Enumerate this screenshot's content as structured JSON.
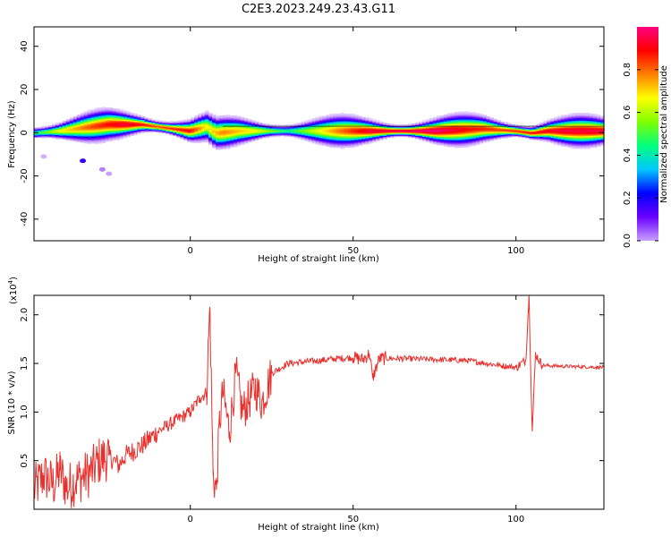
{
  "title": "C2E3.2023.249.23.43.G11",
  "chart_data": [
    {
      "type": "heatmap",
      "xlabel": "Height of straight line (km)",
      "ylabel": "Frequency (Hz)",
      "xlim": [
        -48,
        127
      ],
      "ylim": [
        -50,
        49
      ],
      "xticks": [
        0,
        50,
        100
      ],
      "yticks": [
        -40,
        -20,
        0,
        20,
        40
      ],
      "ytick_labels": [
        "-40",
        "-20",
        "0",
        "20",
        "40"
      ],
      "colorbar": {
        "label": "Normalized spectral amplitude",
        "range": [
          0.0,
          1.0
        ],
        "ticks": [
          0.0,
          0.2,
          0.4,
          0.6,
          0.8
        ],
        "tick_labels": [
          "0.0",
          "0.2",
          "0.4",
          "0.6",
          "0.8"
        ],
        "colormap": [
          "#ffffff",
          "#c8a0ff",
          "#6a00ff",
          "#0000ff",
          "#00c8ff",
          "#00ff80",
          "#80ff00",
          "#ffff00",
          "#ff8000",
          "#ff0000",
          "#ff0080"
        ]
      },
      "band_center_hz": [
        [
          -48,
          0
        ],
        [
          -40,
          1
        ],
        [
          -30,
          3
        ],
        [
          -25,
          4
        ],
        [
          -15,
          4
        ],
        [
          -5,
          2
        ],
        [
          0,
          1
        ],
        [
          5,
          3
        ],
        [
          8,
          0
        ],
        [
          15,
          1
        ],
        [
          25,
          1
        ],
        [
          50,
          1
        ],
        [
          75,
          1
        ],
        [
          90,
          2
        ],
        [
          100,
          1
        ],
        [
          105,
          0
        ],
        [
          110,
          1
        ],
        [
          127,
          1
        ]
      ],
      "band_peak_amplitude": [
        [
          -48,
          0.5
        ],
        [
          -40,
          0.7
        ],
        [
          -30,
          0.85
        ],
        [
          -20,
          0.95
        ],
        [
          -10,
          0.85
        ],
        [
          0,
          0.9
        ],
        [
          5,
          0.7
        ],
        [
          10,
          0.8
        ],
        [
          20,
          0.7
        ],
        [
          30,
          0.5
        ],
        [
          45,
          0.8
        ],
        [
          55,
          0.95
        ],
        [
          75,
          1.0
        ],
        [
          85,
          0.9
        ],
        [
          95,
          0.85
        ],
        [
          105,
          0.9
        ],
        [
          115,
          0.95
        ],
        [
          127,
          0.95
        ]
      ],
      "isolated_spots": [
        [
          -33,
          -13,
          0.25
        ],
        [
          -27,
          -17,
          0.12
        ],
        [
          -45,
          -11,
          0.08
        ],
        [
          -25,
          -19,
          0.1
        ]
      ],
      "grid": false
    },
    {
      "type": "line",
      "xlabel": "Height of straight line (km)",
      "ylabel": "SNR (10 * v/v)",
      "y_multiplier": "(x10",
      "y_multiplier_exp": "4",
      "y_multiplier_close": ")",
      "xlim": [
        -48,
        127
      ],
      "ylim": [
        0,
        22000
      ],
      "xticks": [
        0,
        50,
        100
      ],
      "yticks": [
        5000,
        10000,
        15000,
        20000
      ],
      "ytick_labels": [
        "0.5",
        "1.0",
        "1.5",
        "2.0"
      ],
      "series": [
        {
          "color": "#e8302c",
          "points": [
            [
              -48,
              2000
            ],
            [
              -45,
              3500
            ],
            [
              -42,
              2500
            ],
            [
              -40,
              4000
            ],
            [
              -38,
              2200
            ],
            [
              -35,
              3000
            ],
            [
              -32,
              3500
            ],
            [
              -30,
              4000
            ],
            [
              -28,
              5000
            ],
            [
              -25,
              5500
            ],
            [
              -22,
              4500
            ],
            [
              -20,
              5500
            ],
            [
              -15,
              6500
            ],
            [
              -10,
              8000
            ],
            [
              -5,
              9000
            ],
            [
              0,
              10000
            ],
            [
              3,
              11500
            ],
            [
              5,
              12000
            ],
            [
              6,
              20800
            ],
            [
              7,
              3500
            ],
            [
              8,
              2000
            ],
            [
              9,
              9000
            ],
            [
              10,
              12000
            ],
            [
              12,
              8000
            ],
            [
              14,
              14000
            ],
            [
              16,
              10000
            ],
            [
              20,
              12500
            ],
            [
              22,
              11000
            ],
            [
              25,
              14000
            ],
            [
              30,
              15000
            ],
            [
              40,
              15300
            ],
            [
              45,
              15500
            ],
            [
              50,
              15600
            ],
            [
              53,
              15400
            ],
            [
              55,
              16000
            ],
            [
              56,
              13500
            ],
            [
              58,
              15500
            ],
            [
              65,
              15500
            ],
            [
              75,
              15400
            ],
            [
              85,
              15300
            ],
            [
              95,
              14800
            ],
            [
              100,
              14600
            ],
            [
              103,
              15300
            ],
            [
              104,
              22000
            ],
            [
              105,
              8000
            ],
            [
              106,
              16000
            ],
            [
              108,
              14800
            ],
            [
              115,
              14700
            ],
            [
              127,
              14600
            ]
          ]
        }
      ],
      "grid": false
    }
  ]
}
